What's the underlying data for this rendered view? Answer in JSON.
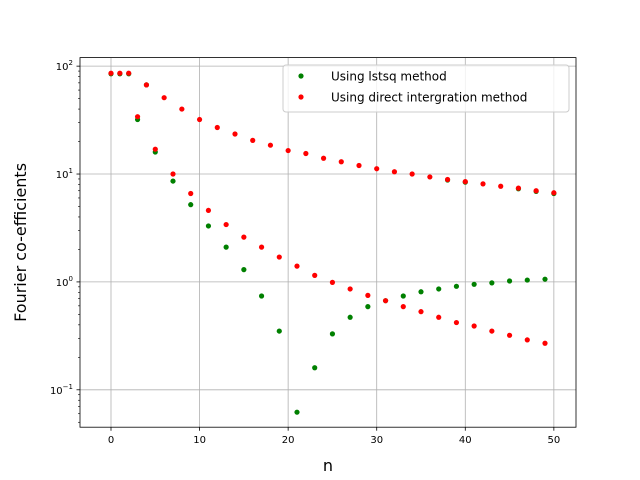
{
  "chart_data": {
    "type": "scatter",
    "title": "",
    "xlabel": "n",
    "ylabel": "Fourier co-efficients",
    "xlim": [
      -3.5,
      52.5
    ],
    "ylim": [
      0.045,
      120
    ],
    "yscale": "log",
    "grid": true,
    "legend_position": "top-right",
    "xticks": [
      0,
      10,
      20,
      30,
      40,
      50
    ],
    "xtick_labels": [
      "0",
      "10",
      "20",
      "30",
      "40",
      "50"
    ],
    "yticks": [
      0.1,
      1,
      10,
      100
    ],
    "ytick_labels": [
      {
        "base": "10",
        "exp": "−1"
      },
      {
        "base": "10",
        "exp": "0"
      },
      {
        "base": "10",
        "exp": "1"
      },
      {
        "base": "10",
        "exp": "2"
      }
    ],
    "series": [
      {
        "name": "Using lstsq method",
        "color": "#008000",
        "points": [
          [
            0,
            85
          ],
          [
            1,
            85
          ],
          [
            2,
            85
          ],
          [
            3,
            32
          ],
          [
            4,
            67
          ],
          [
            5,
            16
          ],
          [
            7,
            8.6
          ],
          [
            9,
            5.2
          ],
          [
            11,
            3.3
          ],
          [
            13,
            2.1
          ],
          [
            15,
            1.3
          ],
          [
            17,
            0.74
          ],
          [
            19,
            0.35
          ],
          [
            21,
            0.062
          ],
          [
            23,
            0.16
          ],
          [
            25,
            0.33
          ],
          [
            27,
            0.47
          ],
          [
            29,
            0.59
          ],
          [
            31,
            0.67
          ],
          [
            33,
            0.74
          ],
          [
            35,
            0.81
          ],
          [
            37,
            0.86
          ],
          [
            39,
            0.91
          ],
          [
            41,
            0.95
          ],
          [
            43,
            0.98
          ],
          [
            45,
            1.02
          ],
          [
            47,
            1.04
          ],
          [
            49,
            1.06
          ],
          [
            38,
            8.8
          ],
          [
            40,
            8.4
          ],
          [
            46,
            7.3
          ],
          [
            48,
            6.9
          ],
          [
            50,
            6.6
          ]
        ]
      },
      {
        "name": "Using direct intergration method",
        "color": "#ff0000",
        "points": [
          [
            0,
            86
          ],
          [
            1,
            86
          ],
          [
            2,
            86
          ],
          [
            3,
            34
          ],
          [
            4,
            67
          ],
          [
            5,
            17
          ],
          [
            6,
            51
          ],
          [
            7,
            10
          ],
          [
            8,
            40
          ],
          [
            9,
            6.6
          ],
          [
            10,
            32
          ],
          [
            11,
            4.6
          ],
          [
            12,
            27
          ],
          [
            13,
            3.4
          ],
          [
            14,
            23.5
          ],
          [
            15,
            2.6
          ],
          [
            16,
            20.5
          ],
          [
            17,
            2.1
          ],
          [
            18,
            18.5
          ],
          [
            19,
            1.7
          ],
          [
            20,
            16.5
          ],
          [
            21,
            1.4
          ],
          [
            22,
            15.5
          ],
          [
            23,
            1.15
          ],
          [
            24,
            14
          ],
          [
            25,
            0.99
          ],
          [
            26,
            13
          ],
          [
            27,
            0.86
          ],
          [
            28,
            12
          ],
          [
            29,
            0.75
          ],
          [
            30,
            11.2
          ],
          [
            31,
            0.67
          ],
          [
            32,
            10.5
          ],
          [
            33,
            0.59
          ],
          [
            34,
            10
          ],
          [
            35,
            0.53
          ],
          [
            36,
            9.4
          ],
          [
            37,
            0.47
          ],
          [
            38,
            8.9
          ],
          [
            39,
            0.42
          ],
          [
            40,
            8.5
          ],
          [
            41,
            0.39
          ],
          [
            42,
            8.1
          ],
          [
            43,
            0.35
          ],
          [
            44,
            7.7
          ],
          [
            45,
            0.32
          ],
          [
            46,
            7.4
          ],
          [
            47,
            0.29
          ],
          [
            48,
            7.0
          ],
          [
            49,
            0.27
          ],
          [
            50,
            6.7
          ]
        ]
      }
    ]
  }
}
